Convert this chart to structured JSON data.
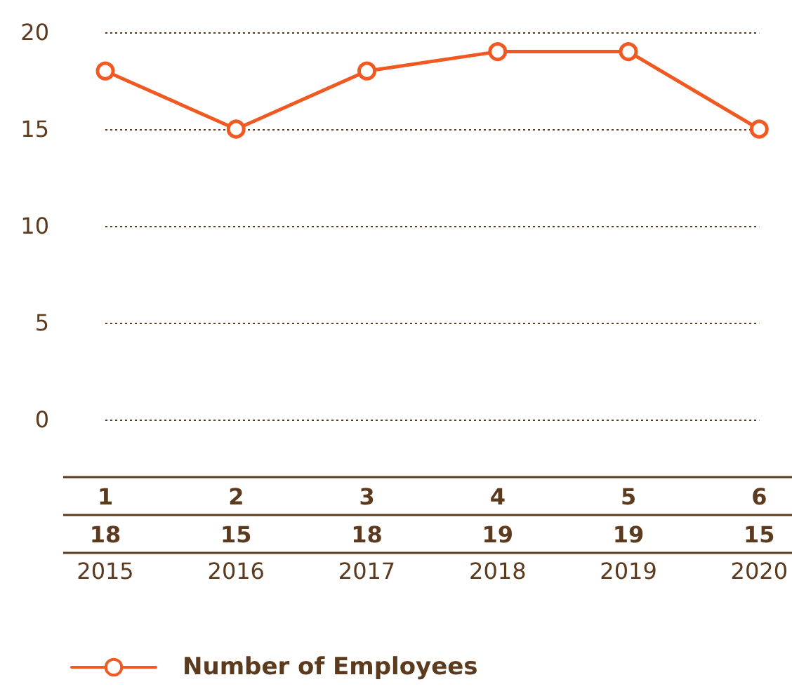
{
  "chart_data": {
    "type": "line",
    "categories": [
      "2015",
      "2016",
      "2017",
      "2018",
      "2019",
      "2020"
    ],
    "series": [
      {
        "name": "Number of Employees",
        "color": "#f05a22",
        "values": [
          18,
          15,
          18,
          19,
          19,
          15
        ]
      }
    ],
    "ylim": [
      0,
      20
    ],
    "yticks": [
      0,
      5,
      10,
      15,
      20
    ],
    "grid": "y",
    "legend": "bottom left",
    "marker": "circle",
    "line_style": "solid",
    "data_labels": true,
    "annotations": [
      "1",
      "2",
      "3",
      "4",
      "5",
      "6"
    ]
  }
}
